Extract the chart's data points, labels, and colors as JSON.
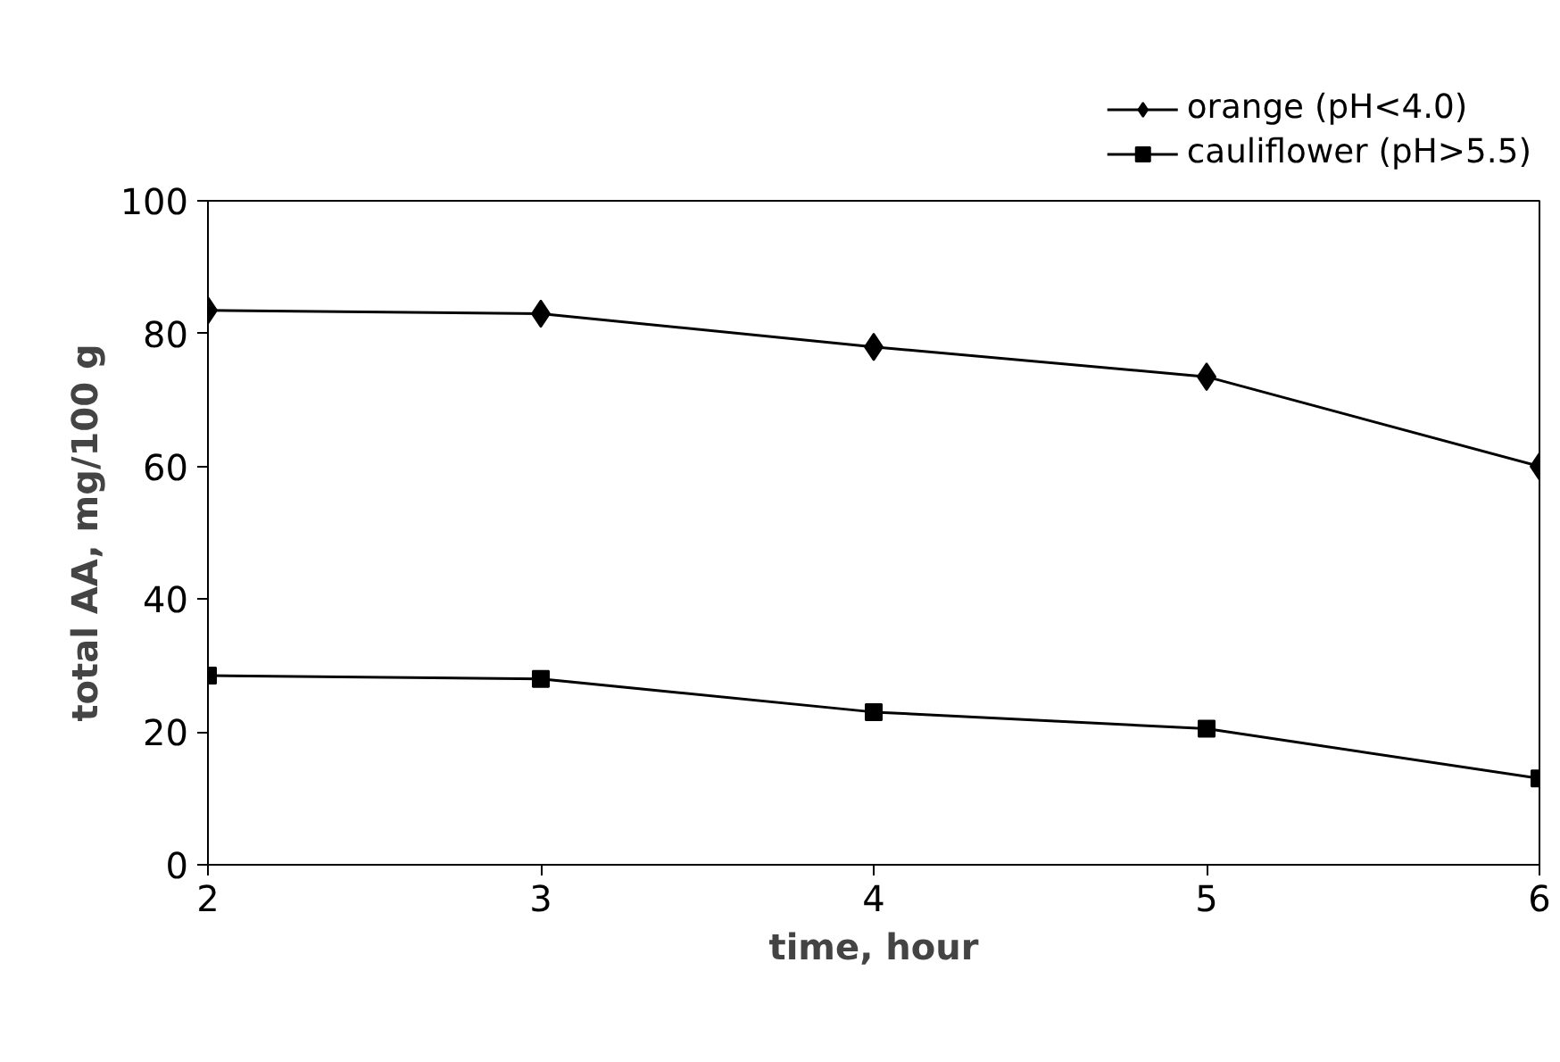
{
  "chart_data": {
    "type": "line",
    "xlabel": "time, hour",
    "ylabel": "total AA, mg/100 g",
    "x": [
      2,
      3,
      4,
      5,
      6
    ],
    "series": [
      {
        "name": "orange (pH<4.0)",
        "color": "#000000",
        "marker": "diamond",
        "values": [
          83.5,
          83,
          78,
          73.5,
          60
        ]
      },
      {
        "name": "cauliflower (pH>5.5)",
        "color": "#000000",
        "marker": "square",
        "values": [
          28.5,
          28,
          23,
          20.5,
          13
        ]
      }
    ],
    "xlim": [
      2,
      6
    ],
    "xticks": [
      2,
      3,
      4,
      5,
      6
    ],
    "ylim": [
      0,
      100
    ],
    "yticks": [
      0,
      20,
      40,
      60,
      80,
      100
    ],
    "grid": false,
    "legend": "top right",
    "line_style": "solid"
  }
}
